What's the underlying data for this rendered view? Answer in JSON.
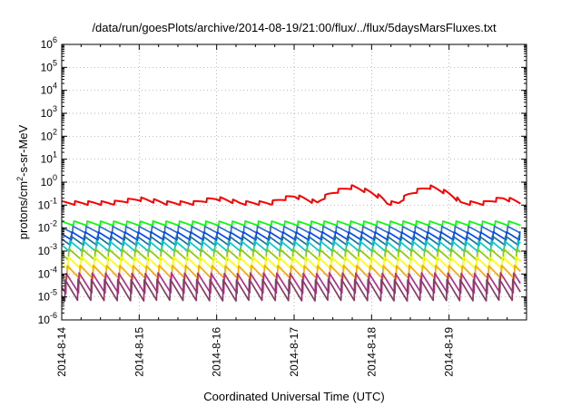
{
  "chart_data": {
    "type": "line",
    "title": "/data/run/goesPlots/archive/2014-08-19/21:00/flux/../flux/5daysMarsFluxes.txt",
    "xlabel": "Coordinated Universal Time (UTC)",
    "ylabel": "protons/cm2-s-sr-MeV",
    "ylabel_parts": [
      "protons/cm",
      "2",
      "-s-sr-MeV"
    ],
    "y_scale": "log",
    "ylim": [
      1e-06,
      1000000.0
    ],
    "xlim": [
      "2014-08-14",
      "2014-08-20"
    ],
    "y_ticks": [
      {
        "base": "10",
        "exp": "-6",
        "value": 1e-06
      },
      {
        "base": "10",
        "exp": "-5",
        "value": 1e-05
      },
      {
        "base": "10",
        "exp": "-4",
        "value": 0.0001
      },
      {
        "base": "10",
        "exp": "-3",
        "value": 0.001
      },
      {
        "base": "10",
        "exp": "-2",
        "value": 0.01
      },
      {
        "base": "10",
        "exp": "-1",
        "value": 0.1
      },
      {
        "base": "10",
        "exp": "0",
        "value": 1
      },
      {
        "base": "10",
        "exp": "1",
        "value": 10
      },
      {
        "base": "10",
        "exp": "2",
        "value": 100
      },
      {
        "base": "10",
        "exp": "3",
        "value": 1000
      },
      {
        "base": "10",
        "exp": "4",
        "value": 10000
      },
      {
        "base": "10",
        "exp": "5",
        "value": 100000
      },
      {
        "base": "10",
        "exp": "6",
        "value": 1000000
      }
    ],
    "x_ticks": [
      {
        "label": "2014-8-14",
        "date": "2014-08-14"
      },
      {
        "label": "2014-8-15",
        "date": "2014-08-15"
      },
      {
        "label": "2014-8-16",
        "date": "2014-08-16"
      },
      {
        "label": "2014-8-17",
        "date": "2014-08-17"
      },
      {
        "label": "2014-8-18",
        "date": "2014-08-18"
      },
      {
        "label": "2014-8-19",
        "date": "2014-08-19"
      }
    ],
    "grid": true,
    "series": [
      {
        "color": "#ff0000",
        "base": 0.1,
        "amp": 1.5,
        "bumps": [
          [
            1.0,
            0.35,
            1.5
          ],
          [
            2.0,
            0.3,
            1.6
          ],
          [
            3.0,
            0.3,
            2.0
          ],
          [
            3.75,
            0.45,
            5.0
          ],
          [
            4.75,
            0.4,
            5.0
          ],
          [
            5.7,
            0.25,
            1.6
          ]
        ]
      },
      {
        "color": "#00ff00",
        "base": 0.016,
        "amp": 1.6
      },
      {
        "color": "#2f6fd6",
        "base": 0.0085,
        "amp": 2.0
      },
      {
        "color": "#0044ff",
        "base": 0.0045,
        "amp": 2.3
      },
      {
        "color": "#1a6ea0",
        "base": 0.0028,
        "amp": 2.6
      },
      {
        "color": "#00cccc",
        "base": 0.0016,
        "amp": 3.0
      },
      {
        "color": "#88cc00",
        "base": 0.0007,
        "amp": 3.2
      },
      {
        "color": "#ffff00",
        "base": 0.0003,
        "amp": 3.5
      },
      {
        "color": "#ffa500",
        "base": 0.00012,
        "amp": 4.0
      },
      {
        "color": "#b0308a",
        "base": 4e-05,
        "amp": 8.0
      },
      {
        "color": "#8b3a62",
        "base": 2e-05,
        "amp": 9.0
      }
    ]
  }
}
